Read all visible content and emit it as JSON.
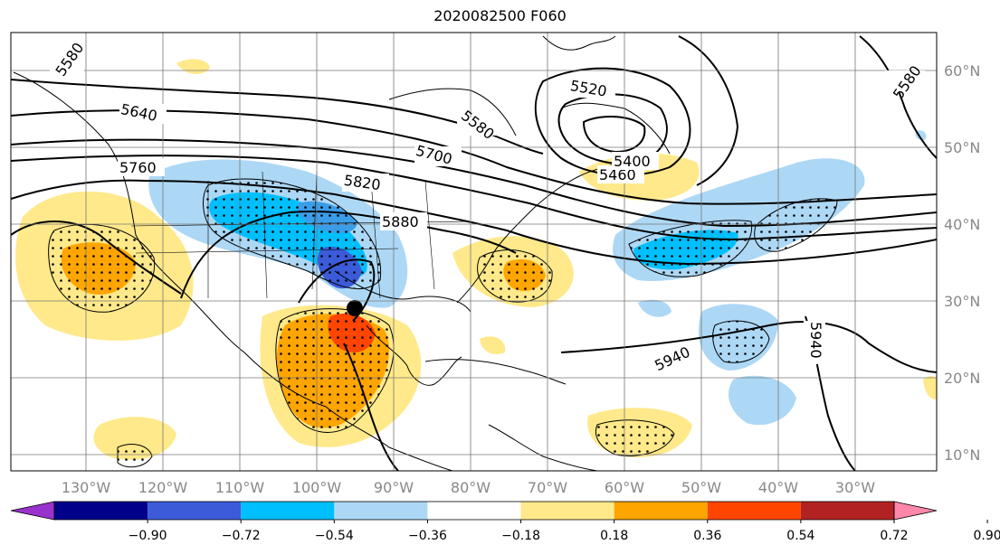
{
  "title": "2020082500 F060",
  "lon_labels": [
    "130°W",
    "120°W",
    "110°W",
    "100°W",
    "90°W",
    "80°W",
    "70°W",
    "60°W",
    "50°W",
    "40°W",
    "30°W"
  ],
  "lat_labels": [
    "60°N",
    "50°N",
    "40°N",
    "30°N",
    "20°N",
    "10°N"
  ],
  "contour_labels": [
    "5580",
    "5640",
    "5700",
    "5760",
    "5820",
    "5880",
    "5520",
    "5580",
    "5460",
    "5400",
    "5580",
    "5940",
    "5940"
  ],
  "colorbar": {
    "ticks": [
      "−0.90",
      "−0.72",
      "−0.54",
      "−0.36",
      "−0.18",
      "0.18",
      "0.36",
      "0.54",
      "0.72",
      "0.90"
    ],
    "colors": [
      "#9932cc",
      "#00008b",
      "#3b5bd9",
      "#00bfff",
      "#add8f5",
      "#ffffff",
      "#ffe98a",
      "#ffa500",
      "#ff4500",
      "#b22222",
      "#ff88aa"
    ]
  },
  "marker": "storm-center-dot"
}
